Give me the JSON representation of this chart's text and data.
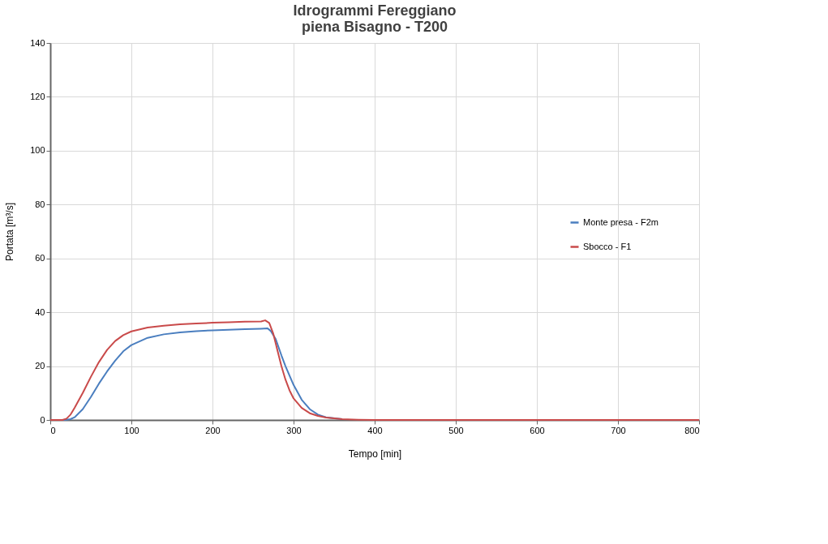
{
  "chart_data": {
    "type": "line",
    "title": "Idrogrammi Fereggiano\npiena Bisagno - T200",
    "xlabel": "Tempo [min]",
    "ylabel": "Portata [m³/s]",
    "xlim": [
      0,
      800
    ],
    "xticks": [
      0,
      100,
      200,
      300,
      400,
      500,
      600,
      700,
      800
    ],
    "ylim": [
      0,
      140
    ],
    "yticks": [
      0,
      20,
      40,
      60,
      80,
      100,
      120,
      140
    ],
    "grid": true,
    "legend": "right",
    "marker": "none",
    "line_style": "solid",
    "series": [
      {
        "name": "Monte presa - F2m",
        "color": "#4a7ebf",
        "x": [
          0,
          18,
          25,
          30,
          40,
          50,
          60,
          70,
          80,
          90,
          100,
          120,
          140,
          160,
          180,
          200,
          220,
          240,
          260,
          268,
          272,
          278,
          285,
          290,
          300,
          310,
          320,
          330,
          340,
          360
        ],
        "values": [
          0,
          0,
          0.3,
          1,
          4,
          8.5,
          13.5,
          18,
          22,
          25.5,
          27.8,
          30.5,
          31.8,
          32.5,
          33,
          33.3,
          33.5,
          33.7,
          33.9,
          34,
          33,
          30,
          24,
          20,
          13,
          7.5,
          4,
          2,
          1,
          0.3
        ]
      },
      {
        "name": "Sbocco - F1",
        "color": "#c94a4a",
        "x": [
          0,
          15,
          20,
          25,
          30,
          40,
          50,
          60,
          70,
          80,
          90,
          100,
          120,
          140,
          160,
          180,
          200,
          220,
          240,
          260,
          265,
          270,
          275,
          280,
          285,
          290,
          295,
          300,
          310,
          320,
          330,
          340,
          360,
          380,
          400,
          800
        ],
        "values": [
          0,
          0,
          0.5,
          2,
          4.5,
          10,
          16,
          21.5,
          26,
          29.3,
          31.5,
          32.9,
          34.3,
          35,
          35.5,
          35.8,
          36.1,
          36.3,
          36.5,
          36.6,
          37,
          36,
          32,
          26,
          20,
          15,
          11,
          8,
          4.5,
          2.5,
          1.5,
          0.9,
          0.3,
          0.1,
          0,
          0
        ]
      }
    ]
  }
}
